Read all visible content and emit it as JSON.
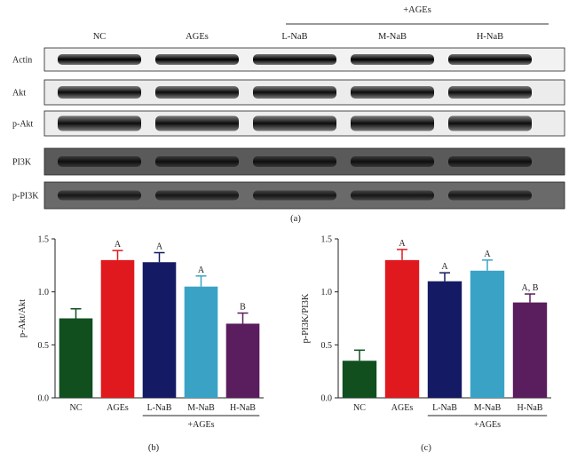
{
  "blot": {
    "group_label": "+AGEs",
    "lanes": [
      "NC",
      "AGEs",
      "L-NaB",
      "M-NaB",
      "H-NaB"
    ],
    "rows": [
      "Actin",
      "Akt",
      "p-Akt",
      "PI3K",
      "p-PI3K"
    ],
    "panel_label": "(a)"
  },
  "chart_data": [
    {
      "type": "bar",
      "panel_label": "(b)",
      "categories": [
        "NC",
        "AGEs",
        "L-NaB",
        "M-NaB",
        "H-NaB"
      ],
      "values": [
        0.75,
        1.3,
        1.28,
        1.05,
        0.7
      ],
      "errors": [
        0.09,
        0.09,
        0.09,
        0.1,
        0.1
      ],
      "significance": [
        "",
        "A",
        "A",
        "A",
        "B"
      ],
      "colors": [
        "#114f1f",
        "#e0191e",
        "#141a63",
        "#3aa3c5",
        "#5a1d5e"
      ],
      "ylabel": "p-Akt/Akt",
      "ylim": [
        0,
        1.5
      ],
      "yticks": [
        "0.0",
        "0.5",
        "1.0",
        "1.5"
      ],
      "group_label": "+AGEs"
    },
    {
      "type": "bar",
      "panel_label": "(c)",
      "categories": [
        "NC",
        "AGEs",
        "L-NaB",
        "M-NaB",
        "H-NaB"
      ],
      "values": [
        0.35,
        1.3,
        1.1,
        1.2,
        0.9
      ],
      "errors": [
        0.1,
        0.1,
        0.08,
        0.1,
        0.08
      ],
      "significance": [
        "",
        "A",
        "A",
        "A",
        "A, B"
      ],
      "colors": [
        "#114f1f",
        "#e0191e",
        "#141a63",
        "#3aa3c5",
        "#5a1d5e"
      ],
      "ylabel": "p-PI3K/PI3K",
      "ylim": [
        0,
        1.5
      ],
      "yticks": [
        "0.0",
        "0.5",
        "1.0",
        "1.5"
      ],
      "group_label": "+AGEs"
    }
  ]
}
